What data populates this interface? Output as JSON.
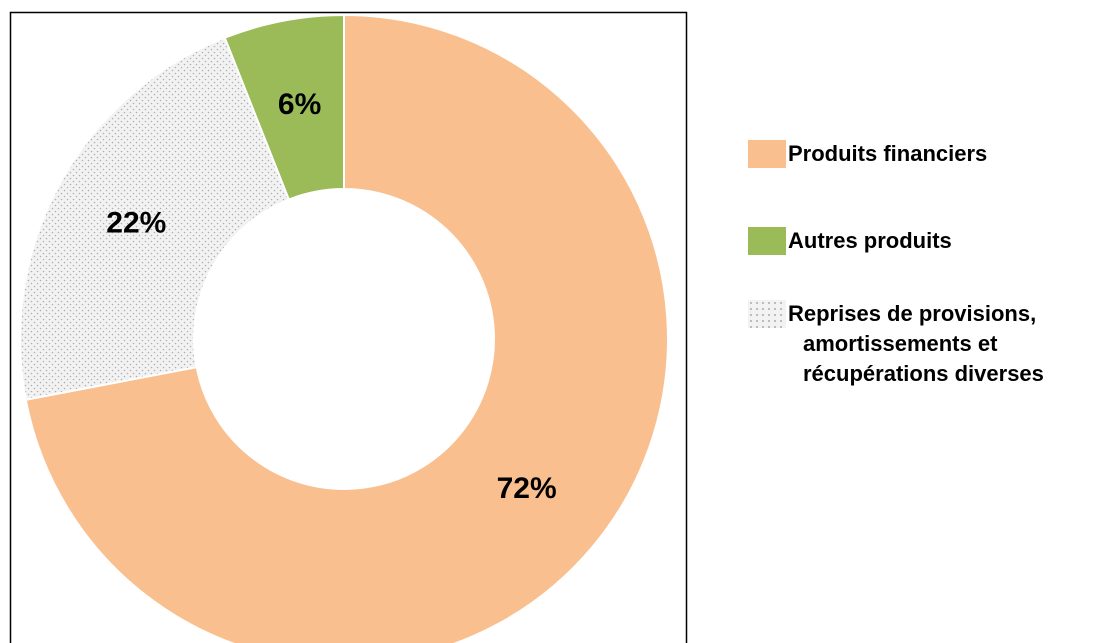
{
  "chart_data": {
    "type": "donut",
    "categories": [
      "Produits financiers",
      "Autres produits",
      "Reprises de provisions, amortissements et récupérations diverses"
    ],
    "values": [
      72,
      6,
      22
    ],
    "value_labels": [
      "72%",
      "6%",
      "22%"
    ],
    "colors": [
      "#F9BF8F",
      "#9BBB59",
      "#F2F2F2"
    ],
    "patterns": [
      "solid",
      "solid",
      "dots"
    ],
    "legend": "right"
  }
}
